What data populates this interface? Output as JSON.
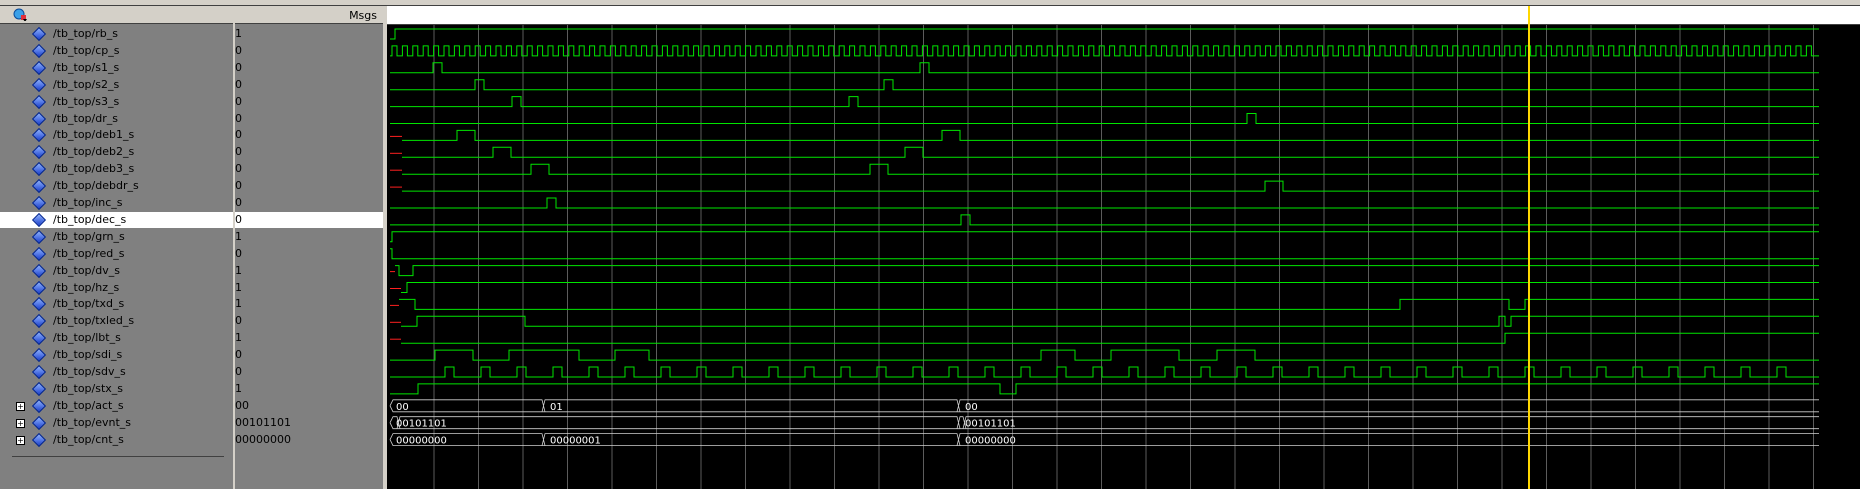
{
  "header": {
    "msgs_label": "Msgs",
    "wave_icon": "wave-list-icon"
  },
  "signals": [
    {
      "name": "/tb_top/rb_s",
      "value": "1"
    },
    {
      "name": "/tb_top/cp_s",
      "value": "0"
    },
    {
      "name": "/tb_top/s1_s",
      "value": "0"
    },
    {
      "name": "/tb_top/s2_s",
      "value": "0"
    },
    {
      "name": "/tb_top/s3_s",
      "value": "0"
    },
    {
      "name": "/tb_top/dr_s",
      "value": "0"
    },
    {
      "name": "/tb_top/deb1_s",
      "value": "0"
    },
    {
      "name": "/tb_top/deb2_s",
      "value": "0"
    },
    {
      "name": "/tb_top/deb3_s",
      "value": "0"
    },
    {
      "name": "/tb_top/debdr_s",
      "value": "0"
    },
    {
      "name": "/tb_top/inc_s",
      "value": "0"
    },
    {
      "name": "/tb_top/dec_s",
      "value": "0"
    },
    {
      "name": "/tb_top/grn_s",
      "value": "1"
    },
    {
      "name": "/tb_top/red_s",
      "value": "0"
    },
    {
      "name": "/tb_top/dv_s",
      "value": "1"
    },
    {
      "name": "/tb_top/hz_s",
      "value": "1"
    },
    {
      "name": "/tb_top/txd_s",
      "value": "1"
    },
    {
      "name": "/tb_top/txled_s",
      "value": "0"
    },
    {
      "name": "/tb_top/lbt_s",
      "value": "1"
    },
    {
      "name": "/tb_top/sdi_s",
      "value": "0"
    },
    {
      "name": "/tb_top/sdv_s",
      "value": "0"
    },
    {
      "name": "/tb_top/stx_s",
      "value": "1"
    },
    {
      "name": "/tb_top/act_s",
      "value": "00"
    },
    {
      "name": "/tb_top/evnt_s",
      "value": "00101101"
    },
    {
      "name": "/tb_top/cnt_s",
      "value": "00000000"
    }
  ],
  "bus_labels": {
    "act": [
      "00",
      "01",
      "00"
    ],
    "evnt": [
      "00101101",
      "00101101"
    ],
    "cnt": [
      "00000000",
      "00000001",
      "00000000"
    ]
  },
  "colors": {
    "wave": "#00e600",
    "undefined": "#ff2020",
    "cursor": "#ffd700",
    "grid": "#9a9a9a"
  }
}
